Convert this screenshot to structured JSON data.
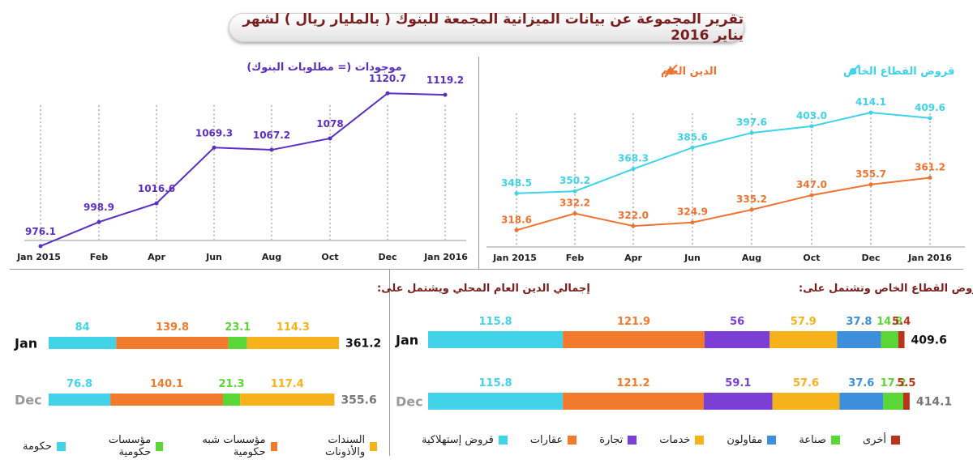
{
  "title": "تقرير المجموعة عن بيانات الميزانية المجمعة للبنوك ( بالمليار ريال ) لشهر يناير 2016",
  "left_chart": {
    "title": "موجودات (= مطلوبات البنوك)",
    "color": "#5b2fc2"
  },
  "right_chart": {
    "legend": [
      {
        "label": "قروض القطاع الخاص",
        "color": "#3ed3e6"
      },
      {
        "label": "الدين العام",
        "color": "#ee7330"
      }
    ]
  },
  "bottom_left": {
    "title": "إجمالي الدين العام المحلي ويشتمل على:",
    "legend": [
      {
        "label": "السندات والأذونات",
        "color": "#f6b21a"
      },
      {
        "label": "مؤسسات شبه حكومية",
        "color": "#f17a2c"
      },
      {
        "label": "مؤسسات حكومية",
        "color": "#5ad636"
      },
      {
        "label": "حكومة",
        "color": "#43d3e8"
      }
    ]
  },
  "bottom_right": {
    "title": "قروض القطاع الخاص وتشتمل على:",
    "legend": [
      {
        "label": "أخرى",
        "color": "#b8341c"
      },
      {
        "label": "صناعة",
        "color": "#5ad636"
      },
      {
        "label": "مقاولون",
        "color": "#3d8fdb"
      },
      {
        "label": "خدمات",
        "color": "#f6b21a"
      },
      {
        "label": "تجارة",
        "color": "#7b3fd6"
      },
      {
        "label": "عقارات",
        "color": "#f17a2c"
      },
      {
        "label": "قروض إستهلاكية",
        "color": "#43d3e8"
      }
    ]
  },
  "chart_data": [
    {
      "type": "line",
      "title": "موجودات (= مطلوبات البنوك)",
      "x": [
        "Jan 2015",
        "Feb",
        "Apr",
        "Jun",
        "Aug",
        "Oct",
        "Dec",
        "Jan 2016"
      ],
      "series": [
        {
          "values": [
            976.1,
            998.9,
            1016.6,
            1069.3,
            1067.2,
            1078,
            1120.7,
            1119.2
          ],
          "labels": [
            "976.1",
            "998.9",
            "1016.6",
            "1069.3",
            "1067.2",
            "1078",
            "1120.7",
            "1119.2"
          ]
        }
      ],
      "ylim": [
        960,
        1140
      ]
    },
    {
      "type": "line",
      "x": [
        "Jan 2015",
        "Feb",
        "Apr",
        "Jun",
        "Aug",
        "Oct",
        "Dec",
        "Jan 2016"
      ],
      "series": [
        {
          "name": "قروض القطاع الخاص",
          "values": [
            348.5,
            350.2,
            368.3,
            385.6,
            397.6,
            403.0,
            414.1,
            409.6
          ],
          "labels": [
            "348.5",
            "350.2",
            "368.3",
            "385.6",
            "397.6",
            "403.0",
            "414.1",
            "409.6"
          ]
        },
        {
          "name": "الدين العام",
          "values": [
            318.6,
            332.2,
            322.0,
            324.9,
            335.2,
            347.0,
            355.7,
            361.2
          ],
          "labels": [
            "318.6",
            "332.2",
            "322.0",
            "324.9",
            "335.2",
            "347.0",
            "355.7",
            "361.2"
          ]
        }
      ],
      "ylim": [
        305,
        420
      ]
    },
    {
      "type": "bar",
      "title": "إجمالي الدين العام المحلي ويشتمل على:",
      "categories": [
        "Jan",
        "Dec"
      ],
      "totals": [
        "361.2",
        "355.6"
      ],
      "stacked": true,
      "orientation": "horizontal",
      "series": [
        {
          "name": "حكومة",
          "values": [
            84,
            76.8
          ],
          "labels": [
            "84",
            "76.8"
          ]
        },
        {
          "name": "مؤسسات شبه حكومية",
          "values": [
            139.8,
            140.1
          ],
          "labels": [
            "139.8",
            "140.1"
          ]
        },
        {
          "name": "مؤسسات حكومية",
          "values": [
            23.1,
            21.3
          ],
          "labels": [
            "23.1",
            "21.3"
          ]
        },
        {
          "name": "السندات والأذونات",
          "values": [
            114.3,
            117.4
          ],
          "labels": [
            "114.3",
            "117.4"
          ]
        }
      ]
    },
    {
      "type": "bar",
      "title": "قروض القطاع الخاص وتشتمل على:",
      "categories": [
        "Jan",
        "Dec"
      ],
      "totals": [
        "409.6",
        "414.1"
      ],
      "stacked": true,
      "orientation": "horizontal",
      "series": [
        {
          "name": "قروض إستهلاكية",
          "values": [
            115.8,
            115.8
          ],
          "labels": [
            "115.8",
            "115.8"
          ]
        },
        {
          "name": "عقارات",
          "values": [
            121.9,
            121.2
          ],
          "labels": [
            "121.9",
            "121.2"
          ]
        },
        {
          "name": "تجارة",
          "values": [
            56,
            59.1
          ],
          "labels": [
            "56",
            "59.1"
          ]
        },
        {
          "name": "خدمات",
          "values": [
            57.9,
            57.6
          ],
          "labels": [
            "57.9",
            "57.6"
          ]
        },
        {
          "name": "مقاولون",
          "values": [
            37.8,
            37.6
          ],
          "labels": [
            "37.8",
            "37.6"
          ]
        },
        {
          "name": "صناعة",
          "values": [
            14.8,
            17.2
          ],
          "labels": [
            "14.8",
            "17.2"
          ]
        },
        {
          "name": "أخرى",
          "values": [
            5.4,
            5.5
          ],
          "labels": [
            "5.4",
            "5.5"
          ]
        }
      ]
    }
  ]
}
